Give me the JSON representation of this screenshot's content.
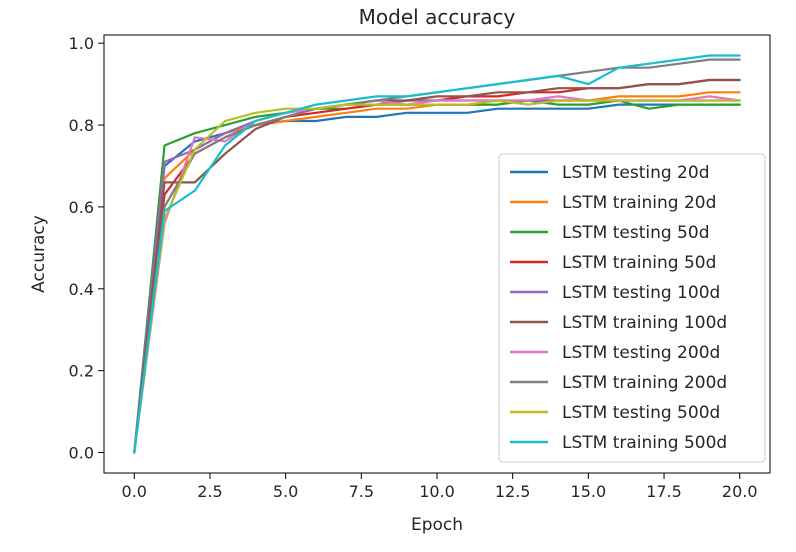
{
  "chart_data": {
    "type": "line",
    "title": "Model accuracy",
    "xlabel": "Epoch",
    "ylabel": "Accuracy",
    "xlim": [
      -1,
      21
    ],
    "ylim": [
      -0.05,
      1.02
    ],
    "xticks": [
      0.0,
      2.5,
      5.0,
      7.5,
      10.0,
      12.5,
      15.0,
      17.5,
      20.0
    ],
    "xtick_labels": [
      "0.0",
      "2.5",
      "5.0",
      "7.5",
      "10.0",
      "12.5",
      "15.0",
      "17.5",
      "20.0"
    ],
    "yticks": [
      0.0,
      0.2,
      0.4,
      0.6,
      0.8,
      1.0
    ],
    "ytick_labels": [
      "0.0",
      "0.2",
      "0.4",
      "0.6",
      "0.8",
      "1.0"
    ],
    "grid": false,
    "legend_position": "lower-right",
    "x": [
      0,
      1,
      2,
      3,
      4,
      5,
      6,
      7,
      8,
      9,
      10,
      11,
      12,
      13,
      14,
      15,
      16,
      17,
      18,
      19,
      20
    ],
    "series": [
      {
        "name": "LSTM testing 20d",
        "color": "#1f77b4",
        "values": [
          0.0,
          0.7,
          0.76,
          0.78,
          0.8,
          0.81,
          0.81,
          0.82,
          0.82,
          0.83,
          0.83,
          0.83,
          0.84,
          0.84,
          0.84,
          0.84,
          0.85,
          0.85,
          0.85,
          0.85,
          0.85
        ]
      },
      {
        "name": "LSTM training 20d",
        "color": "#ff7f0e",
        "values": [
          0.0,
          0.67,
          0.74,
          0.78,
          0.8,
          0.81,
          0.82,
          0.83,
          0.84,
          0.84,
          0.85,
          0.85,
          0.85,
          0.86,
          0.86,
          0.86,
          0.87,
          0.87,
          0.87,
          0.88,
          0.88
        ]
      },
      {
        "name": "LSTM testing 50d",
        "color": "#2ca02c",
        "values": [
          0.0,
          0.75,
          0.78,
          0.8,
          0.82,
          0.83,
          0.84,
          0.84,
          0.85,
          0.85,
          0.85,
          0.85,
          0.85,
          0.86,
          0.85,
          0.85,
          0.86,
          0.84,
          0.85,
          0.85,
          0.85
        ]
      },
      {
        "name": "LSTM training 50d",
        "color": "#d62728",
        "values": [
          0.0,
          0.63,
          0.73,
          0.77,
          0.8,
          0.82,
          0.83,
          0.84,
          0.85,
          0.86,
          0.86,
          0.87,
          0.87,
          0.88,
          0.88,
          0.89,
          0.89,
          0.9,
          0.9,
          0.91,
          0.91
        ]
      },
      {
        "name": "LSTM testing 100d",
        "color": "#9467bd",
        "values": [
          0.0,
          0.71,
          0.74,
          0.78,
          0.81,
          0.83,
          0.84,
          0.85,
          0.85,
          0.86,
          0.86,
          0.86,
          0.86,
          0.86,
          0.86,
          0.86,
          0.86,
          0.86,
          0.86,
          0.86,
          0.86
        ]
      },
      {
        "name": "LSTM training 100d",
        "color": "#8c564b",
        "values": [
          0.0,
          0.66,
          0.66,
          0.73,
          0.79,
          0.82,
          0.84,
          0.85,
          0.86,
          0.86,
          0.87,
          0.87,
          0.88,
          0.88,
          0.89,
          0.89,
          0.89,
          0.9,
          0.9,
          0.91,
          0.91
        ]
      },
      {
        "name": "LSTM testing 200d",
        "color": "#e377c2",
        "values": [
          0.0,
          0.56,
          0.77,
          0.76,
          0.81,
          0.83,
          0.84,
          0.85,
          0.86,
          0.85,
          0.86,
          0.86,
          0.86,
          0.86,
          0.87,
          0.86,
          0.86,
          0.86,
          0.86,
          0.87,
          0.86
        ]
      },
      {
        "name": "LSTM training 200d",
        "color": "#7f7f7f",
        "values": [
          0.0,
          0.6,
          0.73,
          0.77,
          0.8,
          0.82,
          0.84,
          0.85,
          0.86,
          0.87,
          0.88,
          0.89,
          0.9,
          0.91,
          0.92,
          0.93,
          0.94,
          0.94,
          0.95,
          0.96,
          0.96
        ]
      },
      {
        "name": "LSTM testing 500d",
        "color": "#bcbd22",
        "values": [
          0.0,
          0.57,
          0.74,
          0.81,
          0.83,
          0.84,
          0.84,
          0.85,
          0.85,
          0.85,
          0.85,
          0.85,
          0.86,
          0.85,
          0.86,
          0.86,
          0.86,
          0.86,
          0.86,
          0.86,
          0.86
        ]
      },
      {
        "name": "LSTM training 500d",
        "color": "#17becf",
        "values": [
          0.0,
          0.59,
          0.64,
          0.75,
          0.81,
          0.83,
          0.85,
          0.86,
          0.87,
          0.87,
          0.88,
          0.89,
          0.9,
          0.91,
          0.92,
          0.9,
          0.94,
          0.95,
          0.96,
          0.97,
          0.97
        ]
      }
    ]
  }
}
